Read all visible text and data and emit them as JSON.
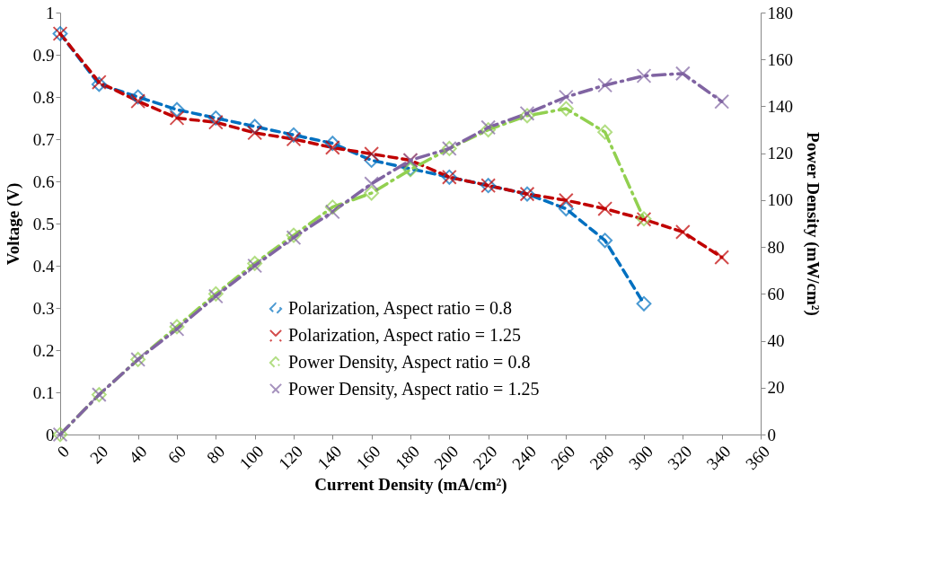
{
  "chart_data": {
    "type": "line",
    "xlabel": "Current Density (mA/cm²)",
    "ylabel": "Voltage (V)",
    "y2label": "Power Density (mW/cm²)",
    "xlim": [
      0,
      360
    ],
    "xticks": [
      0,
      20,
      40,
      60,
      80,
      100,
      120,
      140,
      160,
      180,
      200,
      220,
      240,
      260,
      280,
      300,
      320,
      340,
      360
    ],
    "ylim": [
      0,
      1
    ],
    "yticks": [
      0,
      0.1,
      0.2,
      0.3,
      0.4,
      0.5,
      0.6,
      0.7,
      0.8,
      0.9,
      1
    ],
    "y2lim": [
      0,
      180
    ],
    "y2ticks": [
      0,
      20,
      40,
      60,
      80,
      100,
      120,
      140,
      160,
      180
    ],
    "grid": false,
    "legend": "bottom",
    "series": [
      {
        "name": "Polarization, Aspect ratio = 0.8",
        "color": "#0070c0",
        "marker": "diamond",
        "line_style": "dashed",
        "x": [
          0,
          20,
          40,
          60,
          80,
          100,
          120,
          140,
          160,
          180,
          200,
          220,
          240,
          260,
          280,
          300
        ],
        "values": [
          0.95,
          0.83,
          0.8,
          0.77,
          0.75,
          0.73,
          0.71,
          0.69,
          0.65,
          0.63,
          0.61,
          0.59,
          0.57,
          0.535,
          0.46,
          0.31
        ]
      },
      {
        "name": "Polarization, Aspect ratio = 1.25",
        "color": "#c00000",
        "marker": "cross",
        "line_style": "dashed",
        "x": [
          0,
          20,
          40,
          60,
          80,
          100,
          120,
          140,
          160,
          180,
          200,
          220,
          240,
          260,
          280,
          300,
          320,
          340
        ],
        "values": [
          0.95,
          0.835,
          0.79,
          0.75,
          0.74,
          0.715,
          0.7,
          0.68,
          0.665,
          0.65,
          0.61,
          0.59,
          0.57,
          0.555,
          0.535,
          0.51,
          0.48,
          0.42
        ]
      },
      {
        "name": "Power Density, Aspect ratio = 0.8",
        "color": "#92d050",
        "marker": "diamond",
        "line_style": "dashdot",
        "axis": "y2",
        "x": [
          0,
          20,
          40,
          60,
          80,
          100,
          120,
          140,
          160,
          180,
          200,
          220,
          240,
          260,
          280,
          300
        ],
        "values": [
          0,
          17,
          32,
          46,
          60,
          73,
          85,
          97,
          103,
          113,
          122,
          130,
          136,
          139,
          129,
          92
        ]
      },
      {
        "name": "Power Density, Aspect ratio = 1.25",
        "color": "#8064a2",
        "marker": "cross",
        "line_style": "dashdot",
        "axis": "y2",
        "x": [
          0,
          20,
          40,
          60,
          80,
          100,
          120,
          140,
          160,
          180,
          200,
          220,
          240,
          260,
          280,
          300,
          320,
          340
        ],
        "values": [
          0,
          17,
          32,
          45,
          59,
          72,
          84,
          95,
          107,
          117,
          122,
          131,
          137,
          144,
          149,
          153,
          154,
          142
        ]
      }
    ]
  }
}
